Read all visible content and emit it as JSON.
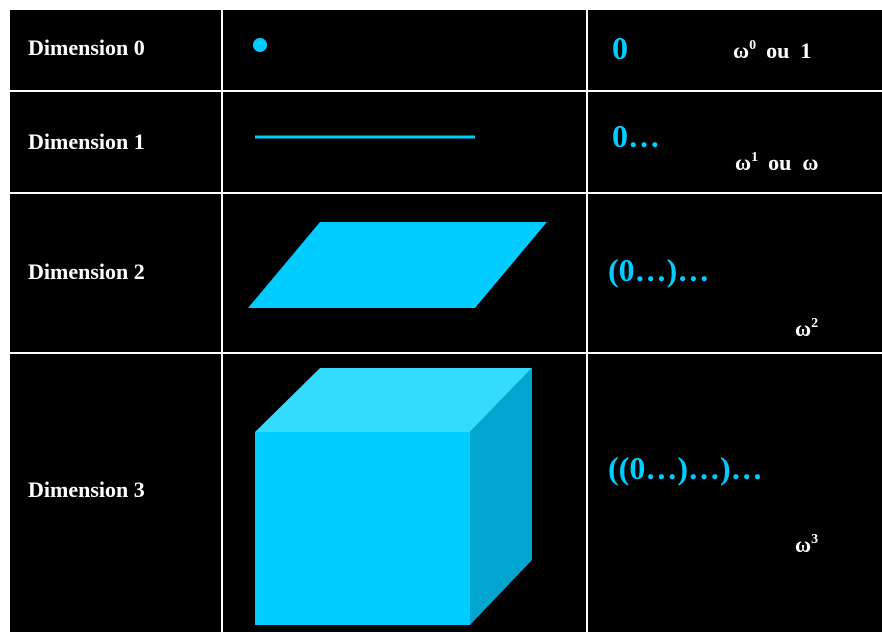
{
  "rows": [
    {
      "label": "Dimension 0",
      "notation": "0",
      "ordinal": {
        "base": "ω",
        "exp": "0",
        "suffix": "ou  1"
      }
    },
    {
      "label": "Dimension 1",
      "notation": "0…",
      "ordinal": {
        "base": "ω",
        "exp": "1",
        "suffix": "ou  ω"
      }
    },
    {
      "label": "Dimension 2",
      "notation": "(0…)…",
      "ordinal": {
        "base": "ω",
        "exp": "2"
      }
    },
    {
      "label": "Dimension 3",
      "notation": "((0…)…)…",
      "ordinal": {
        "base": "ω",
        "exp": "3"
      }
    }
  ]
}
